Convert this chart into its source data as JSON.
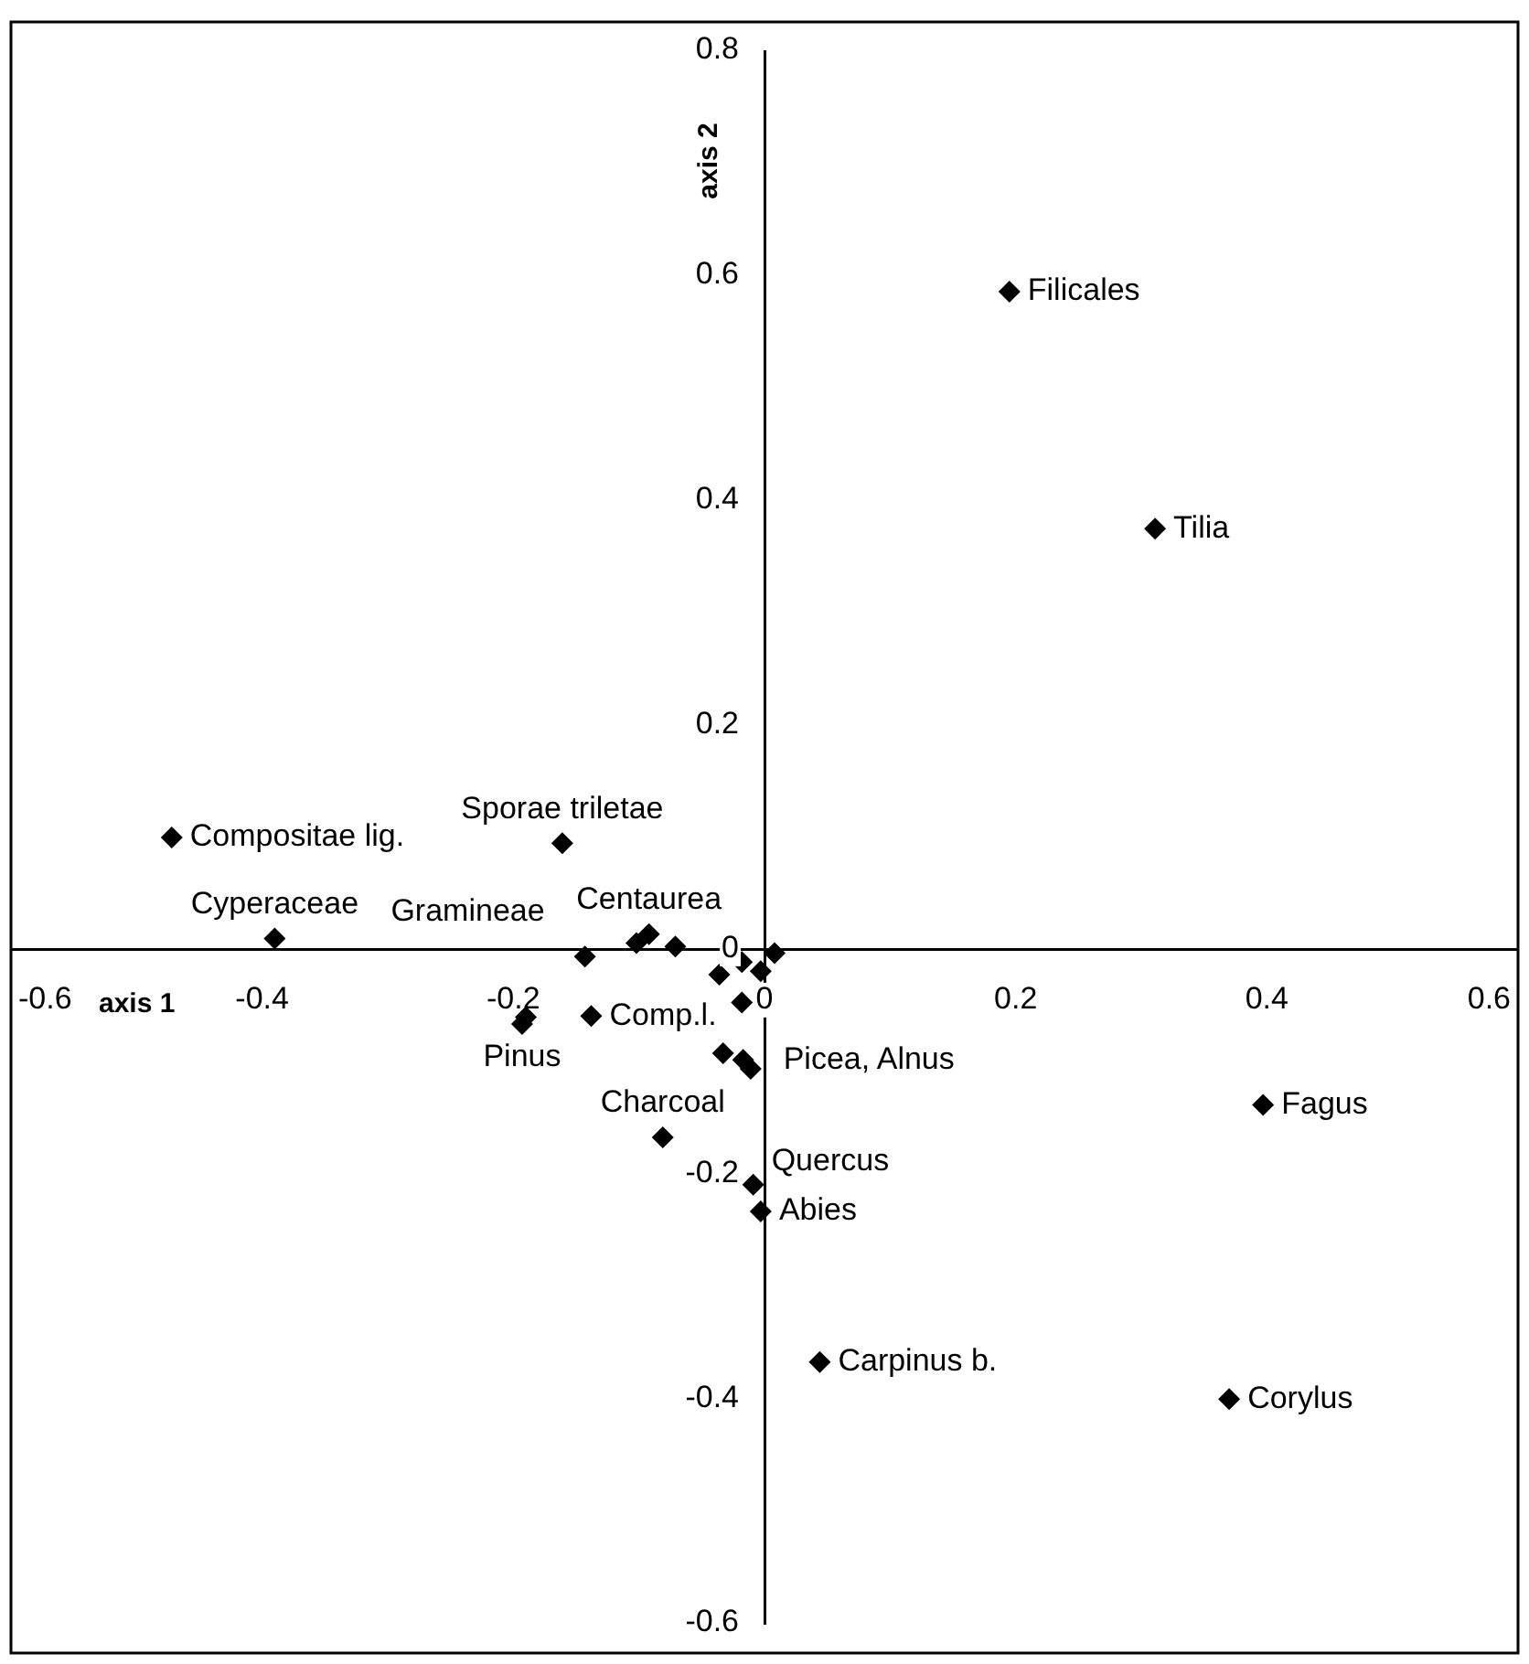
{
  "chart_data": {
    "type": "scatter",
    "xlabel": "axis 1",
    "ylabel": "axis 2",
    "color": "#000000",
    "marker": "diamond",
    "grid": false,
    "legend": false,
    "x": [
      0.195,
      0.311,
      -0.472,
      -0.161,
      -0.39,
      -0.143,
      -0.102,
      -0.092,
      -0.071,
      -0.193,
      -0.19,
      -0.138,
      -0.036,
      -0.018,
      -0.003,
      0.008,
      -0.018,
      -0.033,
      -0.017,
      -0.011,
      -0.081,
      -0.009,
      -0.003,
      0.044,
      0.397,
      0.37
    ],
    "values": [
      0.586,
      0.375,
      0.1,
      0.095,
      0.01,
      -0.006,
      0.006,
      0.014,
      0.003,
      -0.066,
      -0.06,
      -0.059,
      -0.022,
      -0.011,
      -0.019,
      -0.003,
      -0.047,
      -0.092,
      -0.098,
      -0.106,
      -0.167,
      -0.209,
      -0.233,
      -0.367,
      -0.138,
      -0.4
    ],
    "xlim": [
      -0.6,
      0.6
    ],
    "ylim": [
      -0.6,
      0.8
    ],
    "xticks": [
      -0.6,
      -0.4,
      -0.2,
      0,
      0.2,
      0.4,
      0.6
    ],
    "yticks": [
      -0.6,
      -0.4,
      -0.2,
      0,
      0.2,
      0.4,
      0.6,
      0.8
    ],
    "annotations": [
      {
        "text": "Filicales",
        "x": 0.195,
        "y": 0.586
      },
      {
        "text": "Tilia",
        "x": 0.311,
        "y": 0.375
      },
      {
        "text": "Compositae lig.",
        "x": -0.472,
        "y": 0.1
      },
      {
        "text": "Sporae triletae",
        "x": -0.161,
        "y": 0.095
      },
      {
        "text": "Cyperaceae",
        "x": -0.39,
        "y": 0.01
      },
      {
        "text": "Centaurea",
        "x": -0.092,
        "y": 0.014
      },
      {
        "text": "Gramineae",
        "x": -0.143,
        "y": -0.006
      },
      {
        "text": "Pinus",
        "x": -0.193,
        "y": -0.066
      },
      {
        "text": "Comp.l.",
        "x": -0.138,
        "y": -0.059
      },
      {
        "text": "Picea, Alnus",
        "x": -0.017,
        "y": -0.098
      },
      {
        "text": "Charcoal",
        "x": -0.081,
        "y": -0.167
      },
      {
        "text": "Quercus",
        "x": -0.009,
        "y": -0.209
      },
      {
        "text": "Abies",
        "x": -0.003,
        "y": -0.233
      },
      {
        "text": "Carpinus b.",
        "x": 0.044,
        "y": -0.367
      },
      {
        "text": "Fagus",
        "x": 0.397,
        "y": -0.138
      },
      {
        "text": "Corylus",
        "x": 0.37,
        "y": -0.4
      }
    ]
  }
}
